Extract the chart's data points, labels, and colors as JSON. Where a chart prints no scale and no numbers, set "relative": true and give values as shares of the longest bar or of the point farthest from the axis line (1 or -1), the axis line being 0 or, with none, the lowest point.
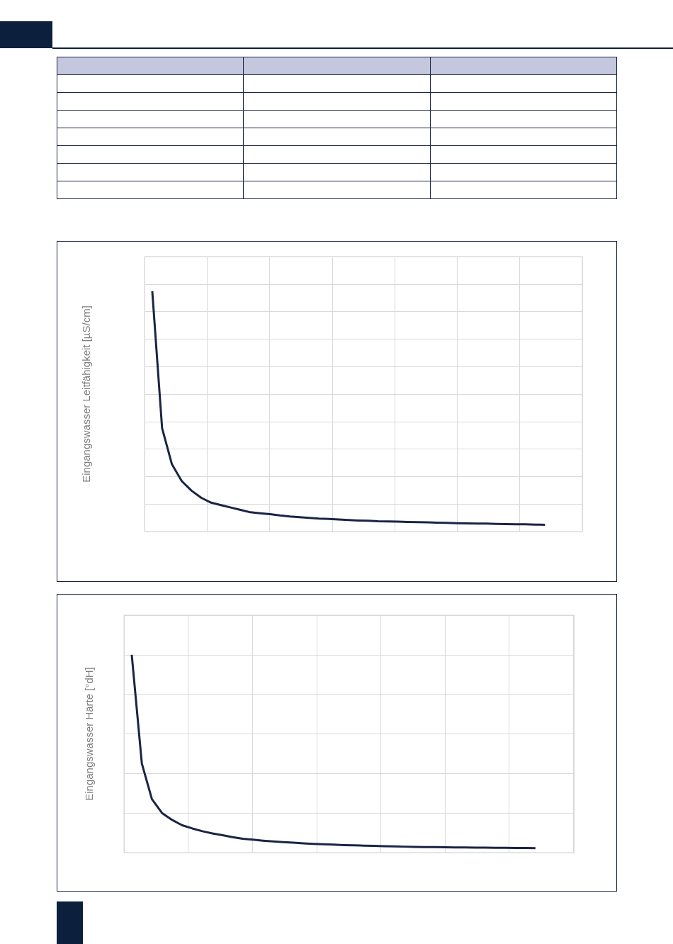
{
  "chart_data": [
    {
      "type": "line",
      "ylabel": "Eingangswasser Leitfähigkeit [µS/cm]",
      "relative": true,
      "grid": true,
      "marker": "none",
      "color": "#1b2444",
      "categories": [
        null,
        null,
        null,
        null,
        null,
        null,
        null,
        null,
        null,
        null,
        null,
        null,
        null,
        null,
        null,
        null,
        null,
        null,
        null,
        null,
        null,
        null,
        null,
        null,
        null,
        null,
        null,
        null,
        null,
        null,
        null,
        null,
        null,
        null,
        null,
        null,
        null,
        null,
        null,
        null,
        null
      ],
      "values": [
        1.0,
        0.43,
        0.28,
        0.21,
        0.17,
        0.14,
        0.12,
        0.11,
        0.1,
        0.09,
        0.08,
        0.076,
        0.072,
        0.067,
        0.063,
        0.06,
        0.057,
        0.054,
        0.052,
        0.05,
        0.048,
        0.046,
        0.045,
        0.043,
        0.042,
        0.041,
        0.04,
        0.039,
        0.038,
        0.037,
        0.036,
        0.035,
        0.034,
        0.033,
        0.033,
        0.032,
        0.031,
        0.03,
        0.03,
        0.029,
        0.028
      ]
    },
    {
      "type": "line",
      "ylabel": "Eingangswasser Härte [°dH]",
      "relative": true,
      "grid": true,
      "marker": "none",
      "color": "#1b2444",
      "categories": [
        null,
        null,
        null,
        null,
        null,
        null,
        null,
        null,
        null,
        null,
        null,
        null,
        null,
        null,
        null,
        null,
        null,
        null,
        null,
        null,
        null,
        null,
        null,
        null,
        null,
        null,
        null,
        null,
        null,
        null,
        null,
        null,
        null,
        null,
        null,
        null,
        null,
        null,
        null,
        null,
        null
      ],
      "values": [
        1.0,
        0.45,
        0.27,
        0.2,
        0.165,
        0.138,
        0.122,
        0.108,
        0.097,
        0.088,
        0.078,
        0.07,
        0.065,
        0.06,
        0.056,
        0.053,
        0.05,
        0.047,
        0.044,
        0.042,
        0.04,
        0.038,
        0.037,
        0.035,
        0.034,
        0.032,
        0.031,
        0.03,
        0.029,
        0.028,
        0.028,
        0.027,
        0.026,
        0.026,
        0.025,
        0.025,
        0.024,
        0.024,
        0.023,
        0.023,
        0.022
      ]
    }
  ]
}
